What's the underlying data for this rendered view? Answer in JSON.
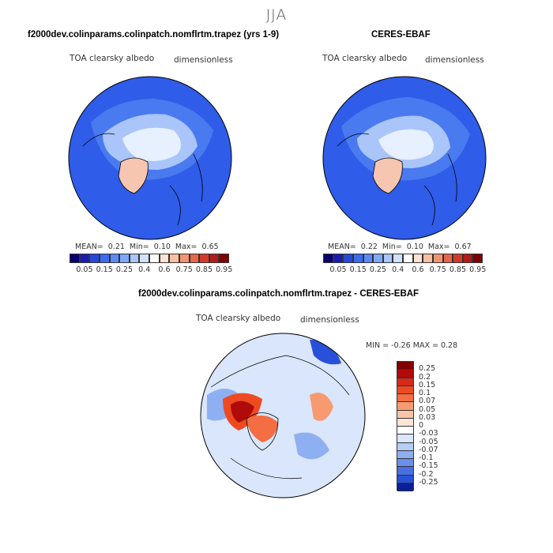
{
  "season": "JJA",
  "colors": {
    "ocean": "#2f5ce8",
    "ocean_light": "#4a7af0",
    "sea_ice": "#e6f0ff",
    "greenland": "#f7c6b0",
    "coast": "#000000"
  },
  "panels": [
    {
      "id": "model",
      "title": "f2000dev.colinparams.colinpatch.nomflrtm.trapez (yrs 1-9)",
      "variable": "TOA clearsky albedo",
      "units": "dimensionless",
      "stats": {
        "mean_label": "MEAN=",
        "mean": "0.21",
        "min_label": "Min=",
        "min": "0.10",
        "max_label": "Max=",
        "max": "0.65"
      }
    },
    {
      "id": "obs",
      "title": "CERES-EBAF",
      "variable": "TOA clearsky albedo",
      "units": "dimensionless",
      "stats": {
        "mean_label": "MEAN=",
        "mean": "0.22",
        "min_label": "Min=",
        "min": "0.10",
        "max_label": "Max=",
        "max": "0.67"
      }
    }
  ],
  "colorbar_top": {
    "labels": [
      "0.05",
      "0.15",
      "0.25",
      "0.4",
      "0.6",
      "0.75",
      "0.85",
      "0.95"
    ],
    "colors": [
      "#08006e",
      "#1a1ab5",
      "#2647d9",
      "#3a6cf0",
      "#5a8af5",
      "#7fa8f7",
      "#a9c5fa",
      "#d2e1fb",
      "#ffffff",
      "#fde3d4",
      "#f8bfa2",
      "#f29471",
      "#e8664a",
      "#d43a2a",
      "#b41a1a",
      "#7f0000"
    ]
  },
  "diff_panel": {
    "title": "f2000dev.colinparams.colinpatch.nomflrtm.trapez - CERES-EBAF",
    "variable": "TOA clearsky albedo",
    "units": "dimensionless",
    "stats": {
      "min_label": "MIN =",
      "min": "-0.26",
      "max_label": "MAX =",
      "max": "0.28"
    }
  },
  "colorbar_diff": {
    "labels": [
      "0.25",
      "0.2",
      "0.15",
      "0.1",
      "0.07",
      "0.05",
      "0.03",
      "0",
      "-0.03",
      "-0.05",
      "-0.07",
      "-0.1",
      "-0.15",
      "-0.2",
      "-0.25"
    ],
    "colors": [
      "#800000",
      "#b00a0a",
      "#d8281a",
      "#ee4a22",
      "#f46d43",
      "#f79a70",
      "#fbc4a6",
      "#fde5d6",
      "#ffffff",
      "#d9e6fb",
      "#b5cdf7",
      "#8eaff2",
      "#6a8fec",
      "#4670e4",
      "#2850d8",
      "#0a1f9a"
    ]
  },
  "chart_data": [
    {
      "type": "heatmap",
      "title": "f2000dev.colinparams.colinpatch.nomflrtm.trapez (yrs 1-9)",
      "variable": "TOA clearsky albedo",
      "units": "dimensionless",
      "mean": 0.21,
      "min": 0.1,
      "max": 0.65,
      "levels": [
        0.05,
        0.15,
        0.25,
        0.4,
        0.6,
        0.75,
        0.85,
        0.95
      ]
    },
    {
      "type": "heatmap",
      "title": "CERES-EBAF",
      "variable": "TOA clearsky albedo",
      "units": "dimensionless",
      "mean": 0.22,
      "min": 0.1,
      "max": 0.67,
      "levels": [
        0.05,
        0.15,
        0.25,
        0.4,
        0.6,
        0.75,
        0.85,
        0.95
      ]
    },
    {
      "type": "heatmap",
      "title": "f2000dev.colinparams.colinpatch.nomflrtm.trapez - CERES-EBAF",
      "variable": "TOA clearsky albedo",
      "units": "dimensionless",
      "min": -0.26,
      "max": 0.28,
      "levels": [
        -0.25,
        -0.2,
        -0.15,
        -0.1,
        -0.07,
        -0.05,
        -0.03,
        0,
        0.03,
        0.05,
        0.07,
        0.1,
        0.15,
        0.2,
        0.25
      ]
    }
  ]
}
